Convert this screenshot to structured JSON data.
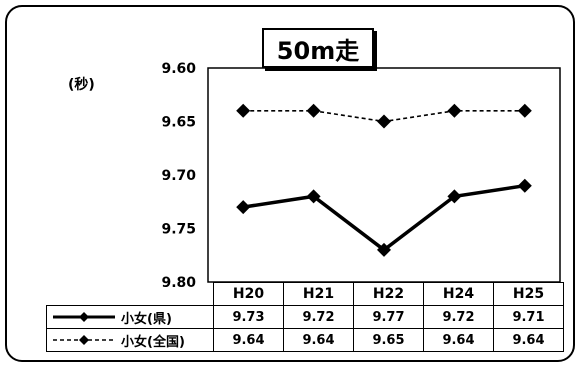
{
  "chart_data": {
    "type": "line",
    "title": "50m走",
    "ylabel": "(秒)",
    "ylim": [
      9.8,
      9.6
    ],
    "y_inverted": true,
    "yticks": [
      "9.60",
      "9.65",
      "9.70",
      "9.75",
      "9.80"
    ],
    "categories": [
      "H20",
      "H21",
      "H22",
      "H24",
      "H25"
    ],
    "series": [
      {
        "name": "小女(県)",
        "style": "solid",
        "color": "#000000",
        "values": [
          9.73,
          9.72,
          9.77,
          9.72,
          9.71
        ],
        "labels": [
          "9.73",
          "9.72",
          "9.77",
          "9.72",
          "9.71"
        ]
      },
      {
        "name": "小女(全国)",
        "style": "dashed",
        "color": "#000000",
        "values": [
          9.64,
          9.64,
          9.65,
          9.64,
          9.64
        ],
        "labels": [
          "9.64",
          "9.64",
          "9.65",
          "9.64",
          "9.64"
        ]
      }
    ],
    "grid": false,
    "legend": "table-left"
  }
}
